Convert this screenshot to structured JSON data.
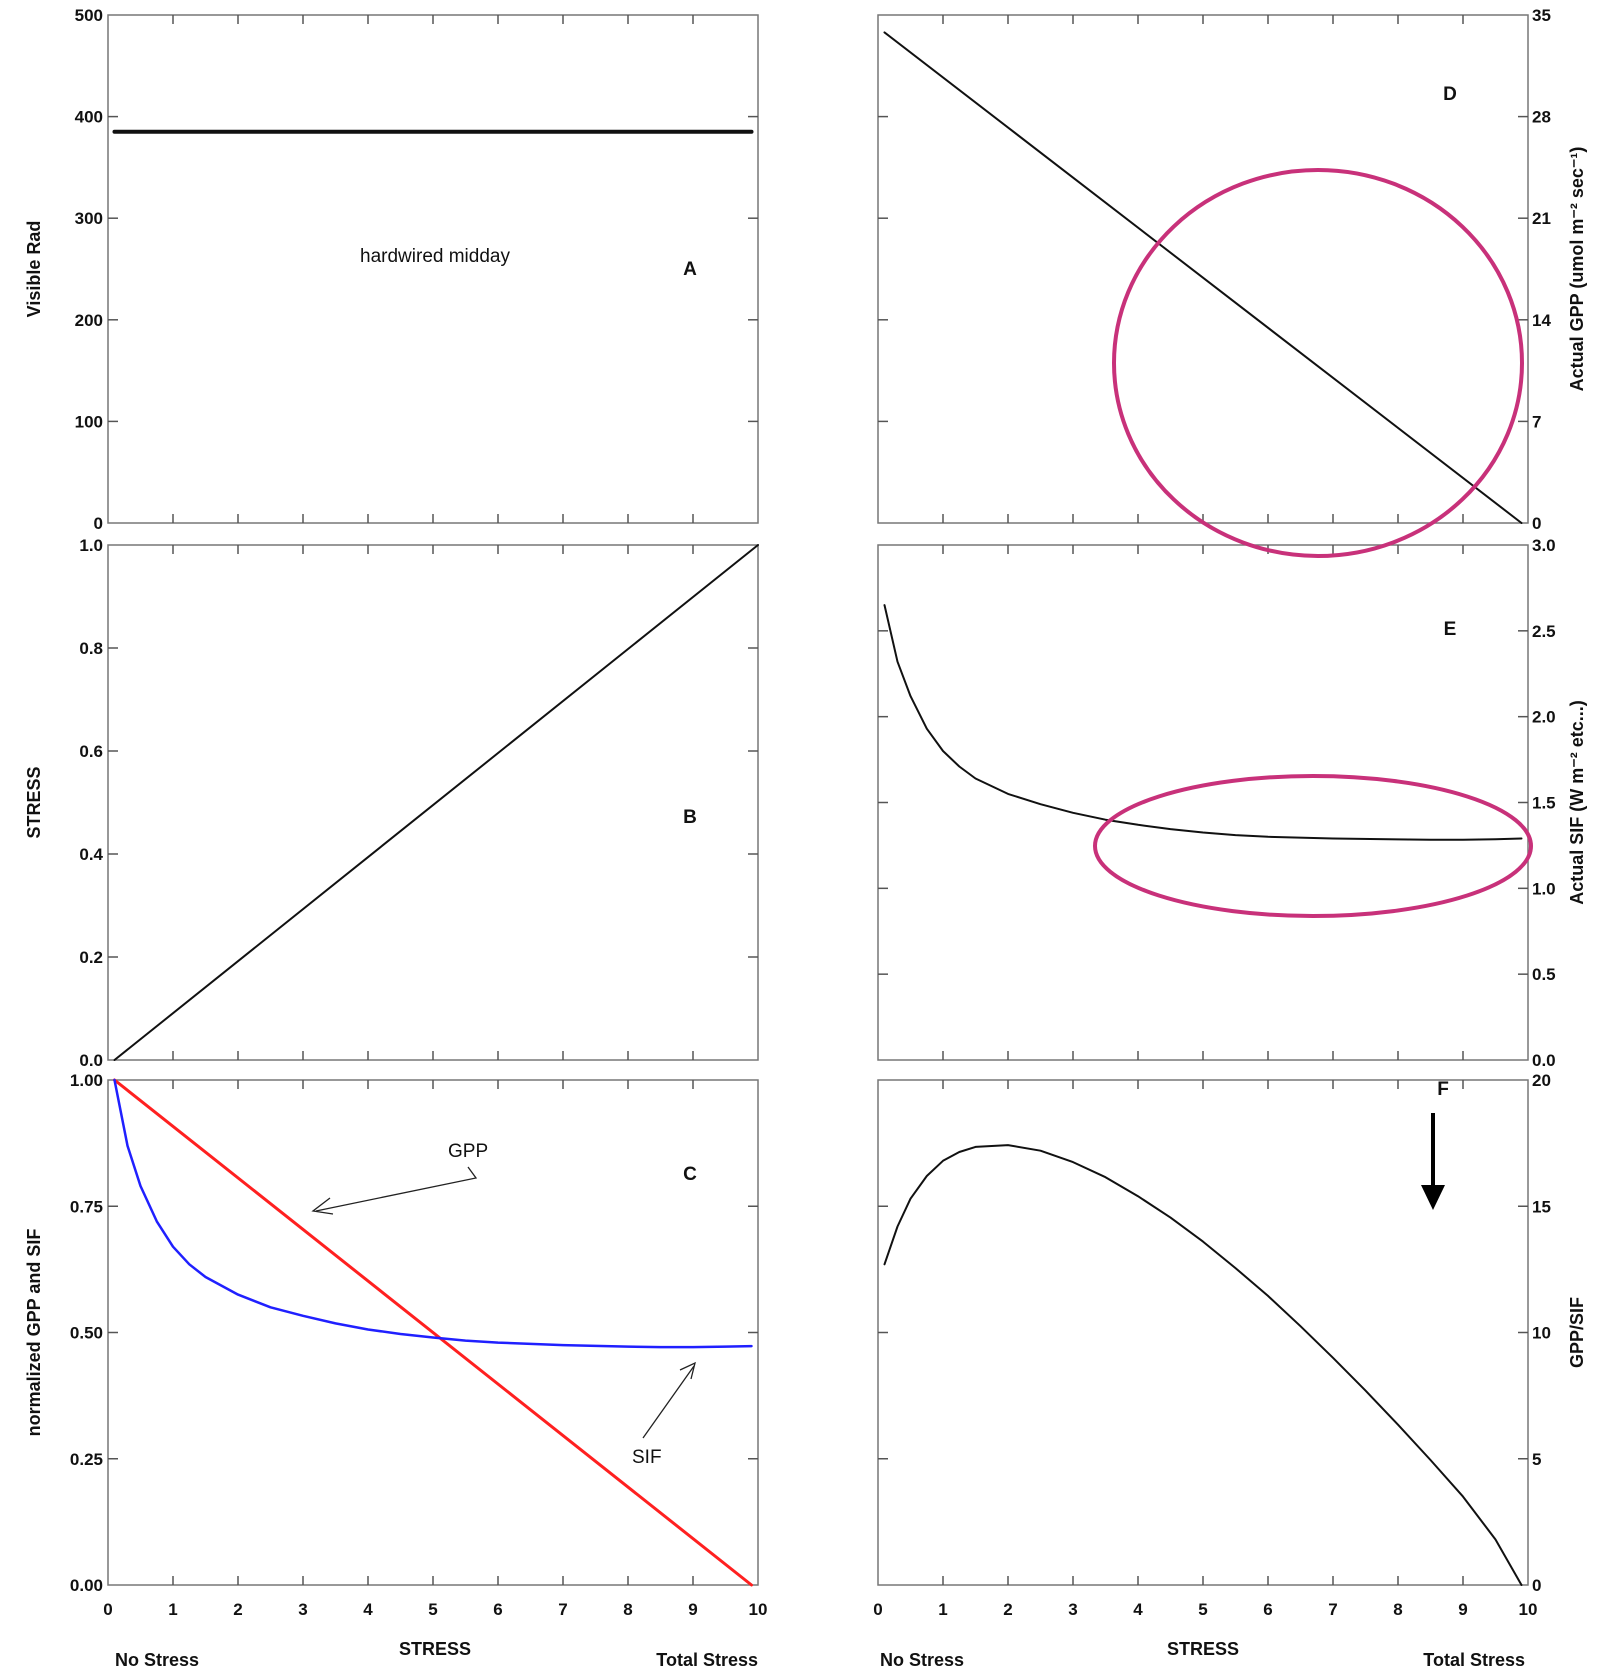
{
  "colors": {
    "gpp_line": "#ff2020",
    "sif_line": "#2020ff",
    "black_line": "#111111",
    "highlight": "#c8317a"
  },
  "x_axis": {
    "ticks": [
      "0",
      "1",
      "2",
      "3",
      "4",
      "5",
      "6",
      "7",
      "8",
      "9",
      "10"
    ],
    "title": "STRESS",
    "left_label": "No Stress",
    "right_label": "Total Stress"
  },
  "chart_data": [
    {
      "id": "A",
      "type": "line",
      "letter": "A",
      "ylabel": "Visible Rad",
      "ylim": [
        0,
        500
      ],
      "yticks": [
        "0",
        "100",
        "200",
        "300",
        "400",
        "500"
      ],
      "annotation": "hardwired midday",
      "series": [
        {
          "x": [
            0.1,
            9.9
          ],
          "y": [
            385,
            385
          ],
          "color": "#111111",
          "width": 4
        }
      ]
    },
    {
      "id": "B",
      "type": "line",
      "letter": "B",
      "ylabel": "STRESS",
      "ylim": [
        0,
        1
      ],
      "yticks": [
        "0.0",
        "0.2",
        "0.4",
        "0.6",
        "0.8",
        "1.0"
      ],
      "series": [
        {
          "x": [
            0.1,
            10
          ],
          "y": [
            0,
            1
          ],
          "color": "#111111",
          "width": 2
        }
      ]
    },
    {
      "id": "C",
      "type": "line",
      "letter": "C",
      "ylabel": "normalized GPP and SIF",
      "ylim": [
        0,
        1
      ],
      "yticks": [
        "0.00",
        "0.25",
        "0.50",
        "0.75",
        "1.00"
      ],
      "series": [
        {
          "name": "GPP",
          "x": [
            0.1,
            9.9
          ],
          "y": [
            1.0,
            0.0
          ],
          "color": "#ff2020",
          "width": 3
        },
        {
          "name": "SIF",
          "x": [
            0.1,
            0.3,
            0.5,
            0.75,
            1,
            1.25,
            1.5,
            2,
            2.5,
            3,
            3.5,
            4,
            4.5,
            5,
            5.5,
            6,
            7,
            8,
            8.5,
            9,
            9.5,
            9.9
          ],
          "y": [
            1.0,
            0.87,
            0.79,
            0.72,
            0.67,
            0.635,
            0.61,
            0.575,
            0.55,
            0.533,
            0.518,
            0.506,
            0.497,
            0.49,
            0.484,
            0.48,
            0.475,
            0.472,
            0.471,
            0.471,
            0.472,
            0.473
          ],
          "color": "#2020ff",
          "width": 2.5
        }
      ],
      "annotations": [
        "GPP",
        "SIF"
      ]
    },
    {
      "id": "D",
      "type": "line",
      "letter": "D",
      "ylabel": "Actual GPP (umol m⁻² sec⁻¹)",
      "ylim": [
        0,
        35
      ],
      "yticks": [
        "0",
        "7",
        "14",
        "21",
        "28",
        "35"
      ],
      "series": [
        {
          "x": [
            0.1,
            9.9
          ],
          "y": [
            33.8,
            0
          ],
          "color": "#111111",
          "width": 2
        }
      ]
    },
    {
      "id": "E",
      "type": "line",
      "letter": "E",
      "ylabel": "Actual SIF (W m⁻² etc...)",
      "ylim": [
        0,
        3
      ],
      "yticks": [
        "0.0",
        "0.5",
        "1.0",
        "1.5",
        "2.0",
        "2.5",
        "3.0"
      ],
      "series": [
        {
          "x": [
            0.1,
            0.3,
            0.5,
            0.75,
            1,
            1.25,
            1.5,
            2,
            2.5,
            3,
            3.5,
            4,
            4.5,
            5,
            5.5,
            6,
            7,
            8,
            8.5,
            9,
            9.5,
            9.9
          ],
          "y": [
            2.65,
            2.32,
            2.12,
            1.93,
            1.8,
            1.71,
            1.64,
            1.55,
            1.49,
            1.44,
            1.4,
            1.37,
            1.345,
            1.325,
            1.31,
            1.3,
            1.29,
            1.285,
            1.283,
            1.283,
            1.286,
            1.29
          ],
          "color": "#111111",
          "width": 2
        }
      ]
    },
    {
      "id": "F",
      "type": "line",
      "letter": "F",
      "ylabel": "GPP/SIF",
      "ylim": [
        0,
        20
      ],
      "yticks": [
        "0",
        "5",
        "10",
        "15",
        "20"
      ],
      "series": [
        {
          "x": [
            0.1,
            0.3,
            0.5,
            0.75,
            1,
            1.25,
            1.5,
            2,
            2.5,
            3,
            3.5,
            4,
            4.5,
            5,
            5.5,
            6,
            6.5,
            7,
            7.5,
            8,
            8.5,
            9,
            9.5,
            9.9
          ],
          "y": [
            12.7,
            14.2,
            15.3,
            16.2,
            16.8,
            17.15,
            17.35,
            17.42,
            17.2,
            16.75,
            16.15,
            15.4,
            14.55,
            13.6,
            12.55,
            11.45,
            10.25,
            9.0,
            7.7,
            6.35,
            4.95,
            3.5,
            1.8,
            0.0
          ],
          "color": "#111111",
          "width": 2
        }
      ]
    }
  ]
}
